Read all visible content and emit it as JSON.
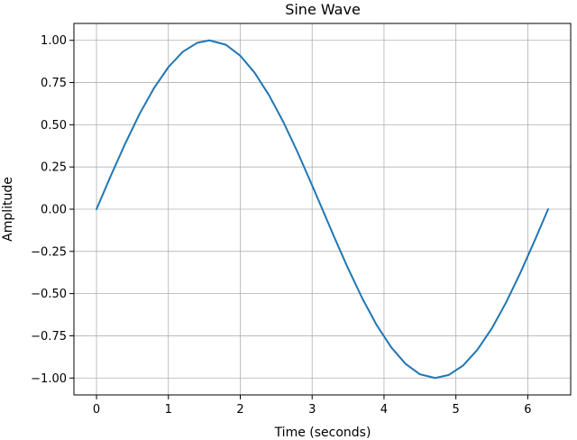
{
  "chart_data": {
    "type": "line",
    "title": "Sine Wave",
    "xlabel": "Time (seconds)",
    "ylabel": "Amplitude",
    "xlim": [
      -0.314,
      6.597
    ],
    "ylim": [
      -1.1,
      1.1
    ],
    "xticks": [
      0,
      1,
      2,
      3,
      4,
      5,
      6
    ],
    "xtick_labels": [
      "0",
      "1",
      "2",
      "3",
      "4",
      "5",
      "6"
    ],
    "yticks": [
      -1.0,
      -0.75,
      -0.5,
      -0.25,
      0.0,
      0.25,
      0.5,
      0.75,
      1.0
    ],
    "ytick_labels": [
      "−1.00",
      "−0.75",
      "−0.50",
      "−0.25",
      "0.00",
      "0.25",
      "0.50",
      "0.75",
      "1.00"
    ],
    "grid": true,
    "legend": "none",
    "series": [
      {
        "color": "#1f77b4",
        "x": [
          0,
          0.2,
          0.4,
          0.6,
          0.8,
          1.0,
          1.2,
          1.4,
          1.571,
          1.8,
          2.0,
          2.2,
          2.4,
          2.6,
          2.8,
          3.0,
          3.142,
          3.3,
          3.5,
          3.7,
          3.9,
          4.1,
          4.3,
          4.5,
          4.712,
          4.9,
          5.1,
          5.3,
          5.5,
          5.7,
          5.9,
          6.1,
          6.283
        ],
        "y": [
          0,
          0.199,
          0.389,
          0.565,
          0.717,
          0.841,
          0.932,
          0.985,
          1.0,
          0.974,
          0.909,
          0.808,
          0.675,
          0.516,
          0.335,
          0.141,
          0,
          -0.158,
          -0.351,
          -0.53,
          -0.688,
          -0.818,
          -0.916,
          -0.978,
          -1.0,
          -0.982,
          -0.926,
          -0.832,
          -0.706,
          -0.551,
          -0.374,
          -0.182,
          0
        ]
      }
    ]
  }
}
